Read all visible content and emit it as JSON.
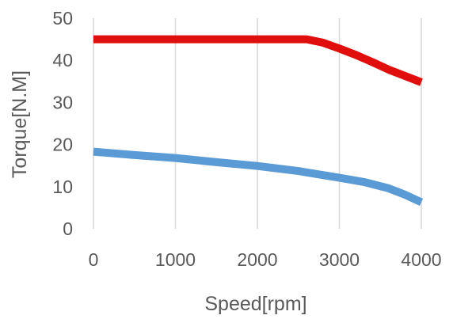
{
  "chart_data": {
    "type": "line",
    "title": "",
    "xlabel": "Speed[rpm]",
    "ylabel": "Torque[N.M]",
    "xlim": [
      0,
      4000
    ],
    "ylim": [
      0,
      50
    ],
    "x_ticks": [
      "0",
      "1000",
      "2000",
      "3000",
      "4000"
    ],
    "y_ticks": [
      "0",
      "10",
      "20",
      "30",
      "40",
      "50"
    ],
    "grid": "vertical",
    "legend": "none",
    "series": [
      {
        "color": "#e10e0e",
        "x": [
          0,
          2600,
          2800,
          3000,
          3200,
          3400,
          3600,
          3800,
          4000
        ],
        "y": [
          45,
          45,
          44.2,
          42.8,
          41.3,
          39.6,
          37.8,
          36.3,
          34.8
        ]
      },
      {
        "color": "#5b9bd5",
        "x": [
          0,
          500,
          1000,
          1500,
          2000,
          2500,
          3000,
          3300,
          3600,
          3800,
          4000
        ],
        "y": [
          18.3,
          17.5,
          16.8,
          15.8,
          14.9,
          13.7,
          12.1,
          11.1,
          9.6,
          8.1,
          6.3
        ]
      }
    ]
  }
}
